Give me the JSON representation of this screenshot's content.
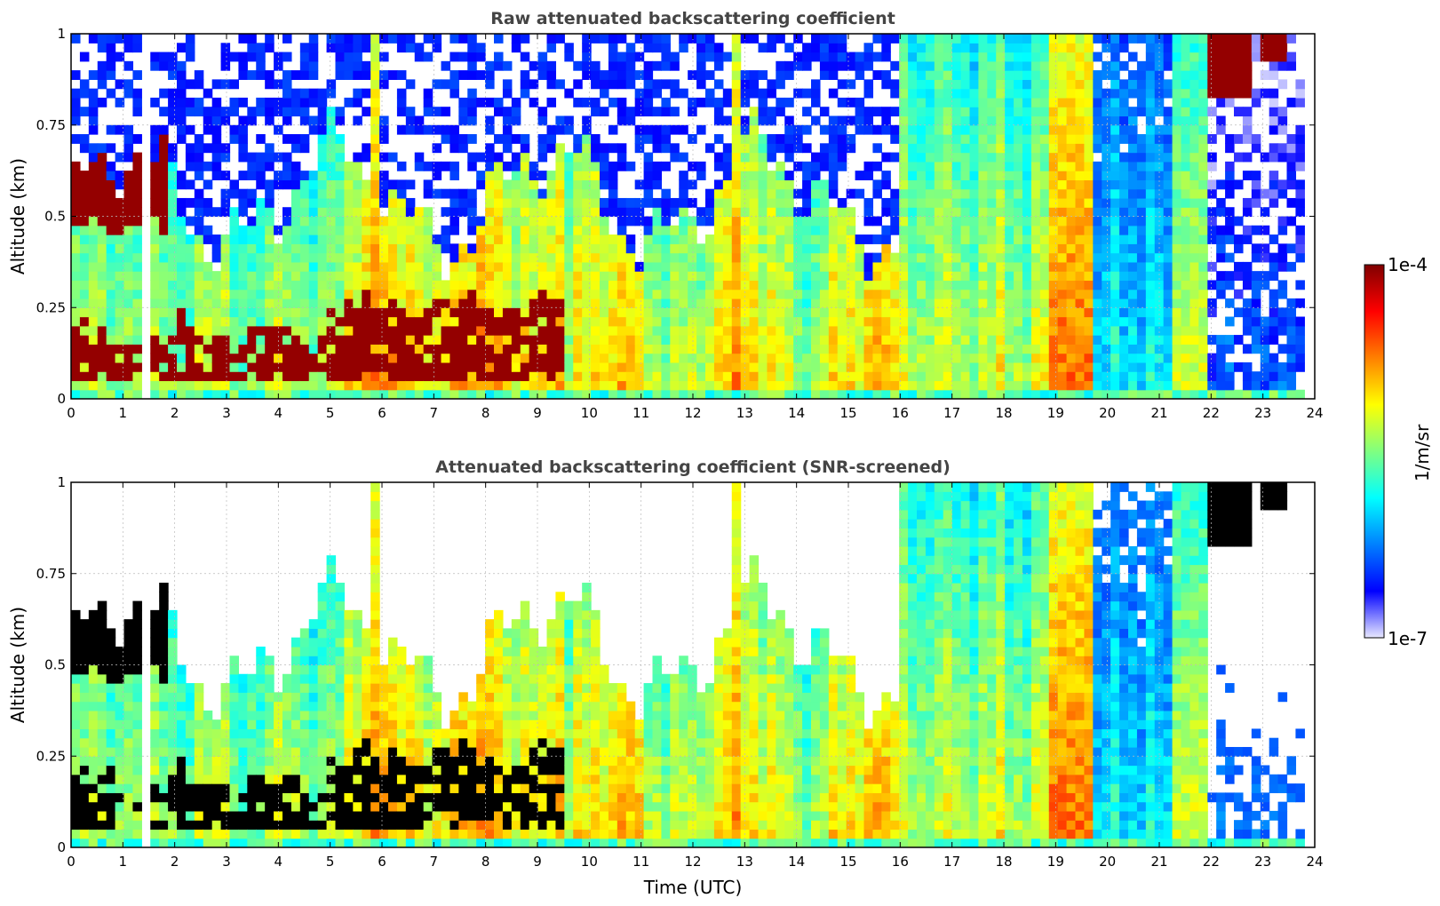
{
  "colors": {
    "jet_scale": [
      "#e8e8ff",
      "#0000ff",
      "#0080ff",
      "#00ffff",
      "#80ff80",
      "#ffff00",
      "#ff8000",
      "#ff0000",
      "#800000"
    ],
    "no_data": "#ffffff",
    "saturated_screened": "#000000",
    "grid": "#bbbbbb"
  },
  "chart_data": [
    {
      "type": "heatmap",
      "title": "Raw attenuated backscattering coefficient",
      "xlabel": "",
      "ylabel": "Altitude (km)",
      "xlim": [
        0,
        24
      ],
      "ylim": [
        0,
        1
      ],
      "xticks": [
        "0",
        "1",
        "2",
        "3",
        "4",
        "5",
        "6",
        "7",
        "8",
        "9",
        "10",
        "11",
        "12",
        "13",
        "14",
        "15",
        "16",
        "17",
        "18",
        "19",
        "20",
        "21",
        "22",
        "23",
        "24"
      ],
      "yticks": [
        "0",
        "0.25",
        "0.5",
        "0.75",
        "1"
      ],
      "grid": true,
      "data_end_hour": 23.8,
      "gap_hour": 1.45,
      "screened": false
    },
    {
      "type": "heatmap",
      "title": "Attenuated backscattering coefficient (SNR-screened)",
      "xlabel": "Time (UTC)",
      "ylabel": "Altitude (km)",
      "xlim": [
        0,
        24
      ],
      "ylim": [
        0,
        1
      ],
      "xticks": [
        "0",
        "1",
        "2",
        "3",
        "4",
        "5",
        "6",
        "7",
        "8",
        "9",
        "10",
        "11",
        "12",
        "13",
        "14",
        "15",
        "16",
        "17",
        "18",
        "19",
        "20",
        "21",
        "22",
        "23",
        "24"
      ],
      "yticks": [
        "0",
        "0.25",
        "0.5",
        "0.75",
        "1"
      ],
      "grid": true,
      "data_end_hour": 23.8,
      "gap_hour": 1.45,
      "screened": true
    }
  ],
  "colorbar": {
    "max_label": "1e-4",
    "min_label": "1e-7",
    "unit_label": "1/m/sr",
    "scale": "log",
    "range": [
      1e-07,
      0.0001
    ]
  }
}
